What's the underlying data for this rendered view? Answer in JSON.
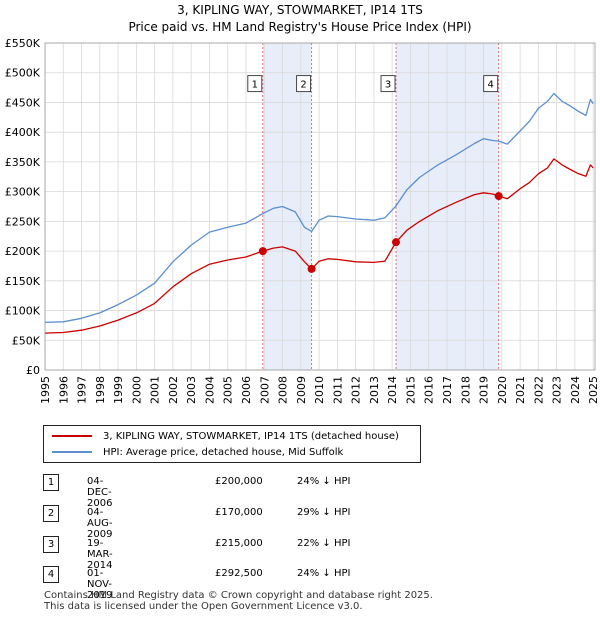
{
  "chart_data": {
    "type": "line",
    "title": "3, KIPLING WAY, STOWMARKET, IP14 1TS",
    "subtitle": "Price paid vs. HM Land Registry's House Price Index (HPI)",
    "xlabel": "",
    "ylabel": "",
    "xlim": [
      1995,
      2025.1
    ],
    "ylim": [
      0,
      550000
    ],
    "y_ticks": [
      0,
      50000,
      100000,
      150000,
      200000,
      250000,
      300000,
      350000,
      400000,
      450000,
      500000,
      550000
    ],
    "y_tick_labels": [
      "£0",
      "£50K",
      "£100K",
      "£150K",
      "£200K",
      "£250K",
      "£300K",
      "£350K",
      "£400K",
      "£450K",
      "£500K",
      "£550K"
    ],
    "x_ticks": [
      1995,
      1996,
      1997,
      1998,
      1999,
      2000,
      2001,
      2002,
      2003,
      2004,
      2005,
      2006,
      2007,
      2008,
      2009,
      2010,
      2011,
      2012,
      2013,
      2014,
      2015,
      2016,
      2017,
      2018,
      2019,
      2020,
      2021,
      2022,
      2023,
      2024,
      2025
    ],
    "x_tick_labels": [
      "1995",
      "1996",
      "1997",
      "1998",
      "1999",
      "2000",
      "2001",
      "2002",
      "2003",
      "2004",
      "2005",
      "2006",
      "2007",
      "2008",
      "2009",
      "2010",
      "2011",
      "2012",
      "2013",
      "2014",
      "2015",
      "2016",
      "2017",
      "2018",
      "2019",
      "2020",
      "2021",
      "2022",
      "2023",
      "2024",
      "2025"
    ],
    "grid": true,
    "series": [
      {
        "name": "3, KIPLING WAY, STOWMARKET, IP14 1TS (detached house)",
        "color": "#cc0000",
        "x": [
          1995.0,
          1996.0,
          1997.0,
          1998.0,
          1999.0,
          2000.0,
          2001.0,
          2002.0,
          2003.0,
          2004.0,
          2005.0,
          2006.0,
          2006.92,
          2007.5,
          2008.0,
          2008.7,
          2009.2,
          2009.59,
          2010.0,
          2010.5,
          2011.0,
          2012.0,
          2013.0,
          2013.6,
          2014.21,
          2014.8,
          2015.5,
          2016.5,
          2017.5,
          2018.5,
          2019.0,
          2019.5,
          2019.83,
          2020.3,
          2021.0,
          2021.5,
          2022.0,
          2022.5,
          2022.85,
          2023.3,
          2023.7,
          2024.2,
          2024.6,
          2024.85,
          2025.0
        ],
        "y": [
          62000,
          63000,
          67000,
          74000,
          84000,
          96000,
          112000,
          140000,
          162000,
          178000,
          185000,
          190000,
          200000,
          205000,
          207000,
          200000,
          182000,
          170000,
          183000,
          187000,
          186000,
          182000,
          181000,
          183000,
          215000,
          235000,
          250000,
          268000,
          282000,
          295000,
          298000,
          296000,
          292500,
          288000,
          305000,
          315000,
          330000,
          340000,
          355000,
          345000,
          338000,
          330000,
          326000,
          345000,
          340000
        ]
      },
      {
        "name": "HPI: Average price, detached house, Mid Suffolk",
        "color": "#5b8fd0",
        "x": [
          1995.0,
          1996.0,
          1997.0,
          1998.0,
          1999.0,
          2000.0,
          2001.0,
          2002.0,
          2003.0,
          2004.0,
          2005.0,
          2006.0,
          2006.92,
          2007.5,
          2008.0,
          2008.7,
          2009.2,
          2009.59,
          2010.0,
          2010.5,
          2011.0,
          2012.0,
          2013.0,
          2013.6,
          2014.21,
          2014.8,
          2015.5,
          2016.5,
          2017.5,
          2018.5,
          2019.0,
          2019.5,
          2019.83,
          2020.3,
          2021.0,
          2021.5,
          2022.0,
          2022.5,
          2022.85,
          2023.3,
          2023.7,
          2024.2,
          2024.6,
          2024.85,
          2025.0
        ],
        "y": [
          80000,
          81000,
          87000,
          96000,
          110000,
          126000,
          146000,
          182000,
          210000,
          232000,
          240000,
          247000,
          263000,
          272000,
          275000,
          266000,
          240000,
          233000,
          252000,
          259000,
          258000,
          254000,
          252000,
          256000,
          276000,
          303000,
          324000,
          345000,
          362000,
          381000,
          389000,
          386000,
          385000,
          380000,
          402000,
          418000,
          440000,
          452000,
          465000,
          452000,
          445000,
          435000,
          428000,
          455000,
          448000
        ]
      }
    ],
    "sales": [
      {
        "num": "1",
        "x": 2006.92,
        "y": 200000
      },
      {
        "num": "2",
        "x": 2009.59,
        "y": 170000
      },
      {
        "num": "3",
        "x": 2014.21,
        "y": 215000
      },
      {
        "num": "4",
        "x": 2019.83,
        "y": 292500
      }
    ],
    "shaded_spans": [
      [
        2006.92,
        2009.59
      ],
      [
        2014.21,
        2019.83
      ]
    ]
  },
  "legend": {
    "property": "3, KIPLING WAY, STOWMARKET, IP14 1TS (detached house)",
    "hpi": "HPI: Average price, detached house, Mid Suffolk",
    "property_color": "#cc0000",
    "hpi_color": "#5b8fd0"
  },
  "transactions": [
    {
      "num": "1",
      "date": "04-DEC-2006",
      "price": "£200,000",
      "hpi": "24% ↓ HPI"
    },
    {
      "num": "2",
      "date": "04-AUG-2009",
      "price": "£170,000",
      "hpi": "29% ↓ HPI"
    },
    {
      "num": "3",
      "date": "19-MAR-2014",
      "price": "£215,000",
      "hpi": "22% ↓ HPI"
    },
    {
      "num": "4",
      "date": "01-NOV-2019",
      "price": "£292,500",
      "hpi": "24% ↓ HPI"
    }
  ],
  "footer": {
    "line1": "Contains HM Land Registry data © Crown copyright and database right 2025.",
    "line2": "This data is licensed under the Open Government Licence v3.0."
  }
}
